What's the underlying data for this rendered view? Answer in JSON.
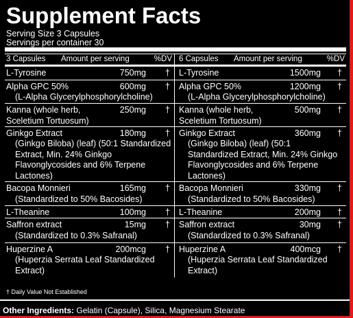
{
  "title": "Supplement Facts",
  "serving_size": "Serving Size 3 Capsules",
  "servings_per_container": "Servings per container 30",
  "columns": [
    {
      "header": {
        "capsules": "3 Capsules",
        "amount": "Amount per serving",
        "dv": "%DV"
      },
      "rows": [
        {
          "name": "L-Tyrosine",
          "amount": "750mg",
          "dv": "†",
          "sub": ""
        },
        {
          "name": "Alpha GPC 50%",
          "amount": "600mg",
          "dv": "†",
          "sub": "(L-Alpha Glycerylphosphorylcholine)"
        },
        {
          "name": "Kanna (whole herb, Sceletium Tortuosum)",
          "amount": "250mg",
          "dv": "†",
          "sub": ""
        },
        {
          "name": "Ginkgo Extract",
          "amount": "180mg",
          "dv": "†",
          "sub": "(Ginkgo Biloba) (leaf) (50:1 Standardized Extract, Min. 24% Ginkgo Flavonglycosides and 6% Terpene Lactones)"
        },
        {
          "name": "Bacopa Monnieri",
          "amount": "165mg",
          "dv": "†",
          "sub": "(Standardized to 50% Bacosides)"
        },
        {
          "name": "L-Theanine",
          "amount": "100mg",
          "dv": "†",
          "sub": ""
        },
        {
          "name": "Saffron extract",
          "amount": "15mg",
          "dv": "†",
          "sub": "(Standardized to 0.3% Safranal)"
        },
        {
          "name": "Huperzine A",
          "amount": "200mcg",
          "dv": "†",
          "sub": "(Huperzia Serrata Leaf Standardized Extract)"
        }
      ]
    },
    {
      "header": {
        "capsules": "6 Capsules",
        "amount": "Amount per serving",
        "dv": "%DV"
      },
      "rows": [
        {
          "name": "L-Tyrosine",
          "amount": "1500mg",
          "dv": "†",
          "sub": ""
        },
        {
          "name": "Alpha GPC 50%",
          "amount": "1200mg",
          "dv": "†",
          "sub": "(L-Alpha Glycerylphosphorylcholine)"
        },
        {
          "name": "Kanna (whole herb, Sceletium Tortuosum)",
          "amount": "500mg",
          "dv": "†",
          "sub": ""
        },
        {
          "name": "Ginkgo Extract",
          "amount": "360mg",
          "dv": "†",
          "sub": "(Ginkgo Biloba) (leaf) (50:1 Standardized Extract, Min. 24% Ginkgo Flavonglycosides and 6% Terpene Lactones)"
        },
        {
          "name": "Bacopa Monnieri",
          "amount": "330mg",
          "dv": "†",
          "sub": "(Standardized to 50% Bacosides)"
        },
        {
          "name": "L-Theanine",
          "amount": "200mg",
          "dv": "†",
          "sub": ""
        },
        {
          "name": "Saffron extract",
          "amount": "30mg",
          "dv": "†",
          "sub": "(Standardized to 0.3% Safranal)"
        },
        {
          "name": "Huperzine A",
          "amount": "400mcg",
          "dv": "†",
          "sub": "(Huperzia Serrata Leaf Standardized Extract)"
        }
      ]
    }
  ],
  "footnote": "† Daily Value Not Established",
  "other_ingredients_label": "Other Ingredients:",
  "other_ingredients": "Gelatin (Capsule), Silica, Magnesium Stearate",
  "colors": {
    "background": "#000000",
    "text": "#ffffff",
    "accent": "#e11b1b"
  }
}
